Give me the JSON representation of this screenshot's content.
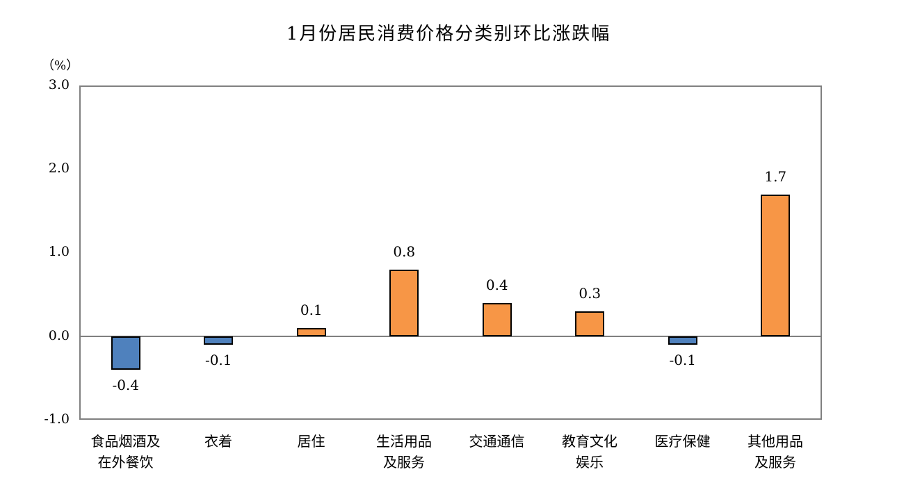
{
  "chart_data": {
    "type": "bar",
    "title": "1月份居民消费价格分类别环比涨跌幅",
    "ylabel": "（%）",
    "xlabel": "",
    "ylim": [
      -1.0,
      3.0
    ],
    "yticks": [
      "3.0",
      "2.0",
      "1.0",
      "0.0",
      "-1.0"
    ],
    "grid": false,
    "legend": null,
    "categories": [
      "食品烟酒及在外餐饮",
      "衣着",
      "居住",
      "生活用品及服务",
      "交通通信",
      "教育文化娱乐",
      "医疗保健",
      "其他用品及服务"
    ],
    "category_lines": [
      [
        "食品烟酒及",
        "在外餐饮"
      ],
      [
        "衣着",
        ""
      ],
      [
        "居住",
        ""
      ],
      [
        "生活用品",
        "及服务"
      ],
      [
        "交通通信",
        ""
      ],
      [
        "教育文化",
        "娱乐"
      ],
      [
        "医疗保健",
        ""
      ],
      [
        "其他用品",
        "及服务"
      ]
    ],
    "values": [
      -0.4,
      -0.1,
      0.1,
      0.8,
      0.4,
      0.3,
      -0.1,
      1.7
    ],
    "value_labels": [
      "-0.4",
      "-0.1",
      "0.1",
      "0.8",
      "0.4",
      "0.3",
      "-0.1",
      "1.7"
    ],
    "colors": {
      "positive": "#F79646",
      "negative": "#4F81BD",
      "edge": "#000000",
      "axis": "#808080"
    }
  }
}
